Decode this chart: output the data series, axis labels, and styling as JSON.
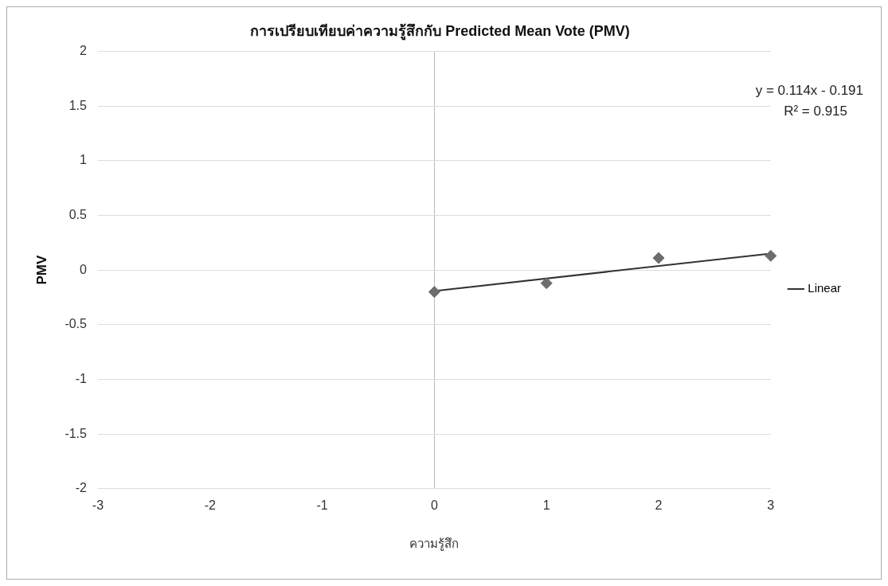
{
  "chart_data": {
    "type": "scatter",
    "title": "การเปรียบเทียบค่าความรู้สึกกับ Predicted Mean Vote (PMV)",
    "xlabel": "ความรู้สึก",
    "ylabel": "PMV",
    "x": [
      0,
      1,
      2,
      3
    ],
    "series": [
      {
        "color": "#6d6d6d",
        "values": [
          -0.2,
          -0.12,
          0.11,
          0.13
        ]
      },
      {
        "type": "line",
        "name": "Linear",
        "color": "#333333",
        "x": [
          0,
          3
        ],
        "values": [
          -0.191,
          0.151
        ],
        "marker": "none"
      }
    ],
    "xlim": [
      -3,
      3
    ],
    "xticks": [
      -3,
      -2,
      -1,
      0,
      1,
      2,
      3
    ],
    "ylim": [
      -2,
      2
    ],
    "yticks": [
      -2,
      -1.5,
      -1,
      -0.5,
      0,
      0.5,
      1,
      1.5,
      2
    ],
    "grid": "y",
    "legend": "right",
    "marker": "diamond",
    "annotations": [
      "y = 0.114x - 0.191",
      "R² = 0.915"
    ]
  }
}
